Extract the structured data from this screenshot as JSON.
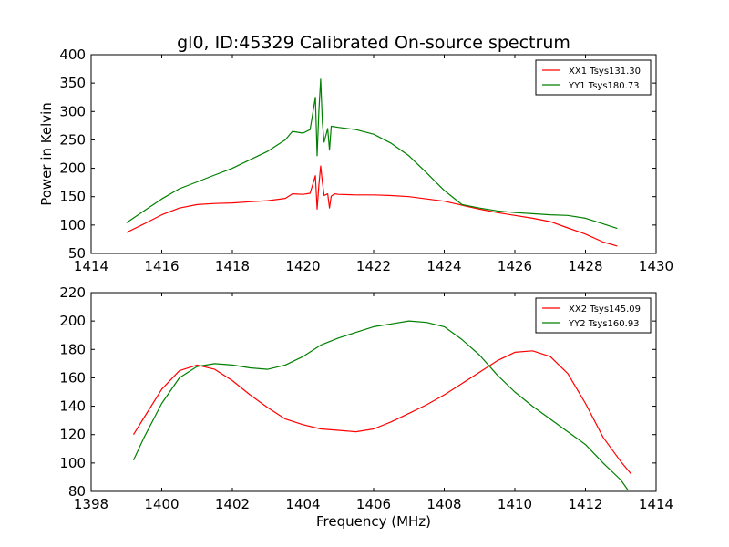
{
  "title": "gl0, ID:45329 Calibrated On-source spectrum",
  "ylabel": "Power in Kelvin",
  "xlabel": "Frequency (MHz)",
  "chart_data": [
    {
      "type": "line",
      "xlim": [
        1414,
        1430
      ],
      "ylim": [
        50,
        400
      ],
      "xticks": [
        1414,
        1416,
        1418,
        1420,
        1422,
        1424,
        1426,
        1428,
        1430
      ],
      "yticks": [
        50,
        100,
        150,
        200,
        250,
        300,
        350,
        400
      ],
      "grid": false,
      "legend": "top-right",
      "series": [
        {
          "name": "XX1 Tsys131.30",
          "color": "#ff0000",
          "x": [
            1415.0,
            1415.5,
            1416.0,
            1416.5,
            1417.0,
            1417.5,
            1418.0,
            1418.5,
            1419.0,
            1419.5,
            1419.7,
            1420.0,
            1420.2,
            1420.35,
            1420.4,
            1420.45,
            1420.5,
            1420.55,
            1420.6,
            1420.7,
            1420.75,
            1420.8,
            1420.9,
            1421.0,
            1421.5,
            1422.0,
            1422.5,
            1423.0,
            1423.5,
            1424.0,
            1424.5,
            1425.0,
            1425.5,
            1426.0,
            1426.5,
            1427.0,
            1427.5,
            1428.0,
            1428.5,
            1428.9
          ],
          "y": [
            87,
            102,
            118,
            130,
            136,
            138,
            139,
            141,
            143,
            147,
            155,
            154,
            156,
            187,
            128,
            170,
            204,
            175,
            152,
            155,
            130,
            151,
            155,
            154,
            153,
            153,
            152,
            150,
            146,
            142,
            135,
            128,
            122,
            117,
            112,
            106,
            95,
            84,
            70,
            63
          ]
        },
        {
          "name": "YY1 Tsys180.73",
          "color": "#008000",
          "x": [
            1415.0,
            1415.5,
            1416.0,
            1416.5,
            1417.0,
            1417.5,
            1418.0,
            1418.5,
            1419.0,
            1419.5,
            1419.7,
            1420.0,
            1420.2,
            1420.35,
            1420.4,
            1420.45,
            1420.5,
            1420.55,
            1420.6,
            1420.7,
            1420.75,
            1420.8,
            1421.0,
            1421.5,
            1422.0,
            1422.5,
            1423.0,
            1423.5,
            1424.0,
            1424.5,
            1425.0,
            1425.5,
            1426.0,
            1426.5,
            1427.0,
            1427.5,
            1428.0,
            1428.5,
            1428.9
          ],
          "y": [
            104,
            125,
            146,
            164,
            176,
            188,
            200,
            215,
            230,
            250,
            265,
            262,
            268,
            325,
            222,
            300,
            357,
            280,
            246,
            270,
            232,
            274,
            272,
            268,
            260,
            244,
            222,
            192,
            161,
            136,
            130,
            125,
            122,
            120,
            118,
            117,
            112,
            102,
            94
          ]
        }
      ]
    },
    {
      "type": "line",
      "xlim": [
        1398,
        1414
      ],
      "ylim": [
        80,
        220
      ],
      "xticks": [
        1398,
        1400,
        1402,
        1404,
        1406,
        1408,
        1410,
        1412,
        1414
      ],
      "yticks": [
        80,
        100,
        120,
        140,
        160,
        180,
        200,
        220
      ],
      "grid": false,
      "legend": "top-right",
      "series": [
        {
          "name": "XX2 Tsys145.09",
          "color": "#ff0000",
          "x": [
            1399.2,
            1399.5,
            1400.0,
            1400.5,
            1401.0,
            1401.5,
            1402.0,
            1402.5,
            1403.0,
            1403.5,
            1404.0,
            1404.5,
            1405.0,
            1405.5,
            1406.0,
            1406.5,
            1407.0,
            1407.5,
            1408.0,
            1408.5,
            1409.0,
            1409.5,
            1410.0,
            1410.5,
            1411.0,
            1411.5,
            1412.0,
            1412.5,
            1413.0,
            1413.3
          ],
          "y": [
            120,
            132,
            152,
            165,
            169,
            166,
            158,
            148,
            139,
            131,
            127,
            124,
            123,
            122,
            124,
            129,
            135,
            141,
            148,
            156,
            164,
            172,
            178,
            179,
            175,
            163,
            142,
            118,
            101,
            92
          ]
        },
        {
          "name": "YY2 Tsys160.93",
          "color": "#008000",
          "x": [
            1399.2,
            1399.5,
            1400.0,
            1400.5,
            1401.0,
            1401.5,
            1402.0,
            1402.5,
            1403.0,
            1403.5,
            1404.0,
            1404.5,
            1405.0,
            1405.5,
            1406.0,
            1406.5,
            1407.0,
            1407.5,
            1408.0,
            1408.5,
            1409.0,
            1409.5,
            1410.0,
            1410.5,
            1411.0,
            1411.5,
            1412.0,
            1412.5,
            1413.0,
            1413.2
          ],
          "y": [
            102,
            118,
            142,
            160,
            168,
            170,
            169,
            167,
            166,
            169,
            175,
            183,
            188,
            192,
            196,
            198,
            200,
            199,
            196,
            187,
            176,
            162,
            150,
            140,
            131,
            122,
            113,
            100,
            88,
            81
          ]
        }
      ]
    }
  ]
}
